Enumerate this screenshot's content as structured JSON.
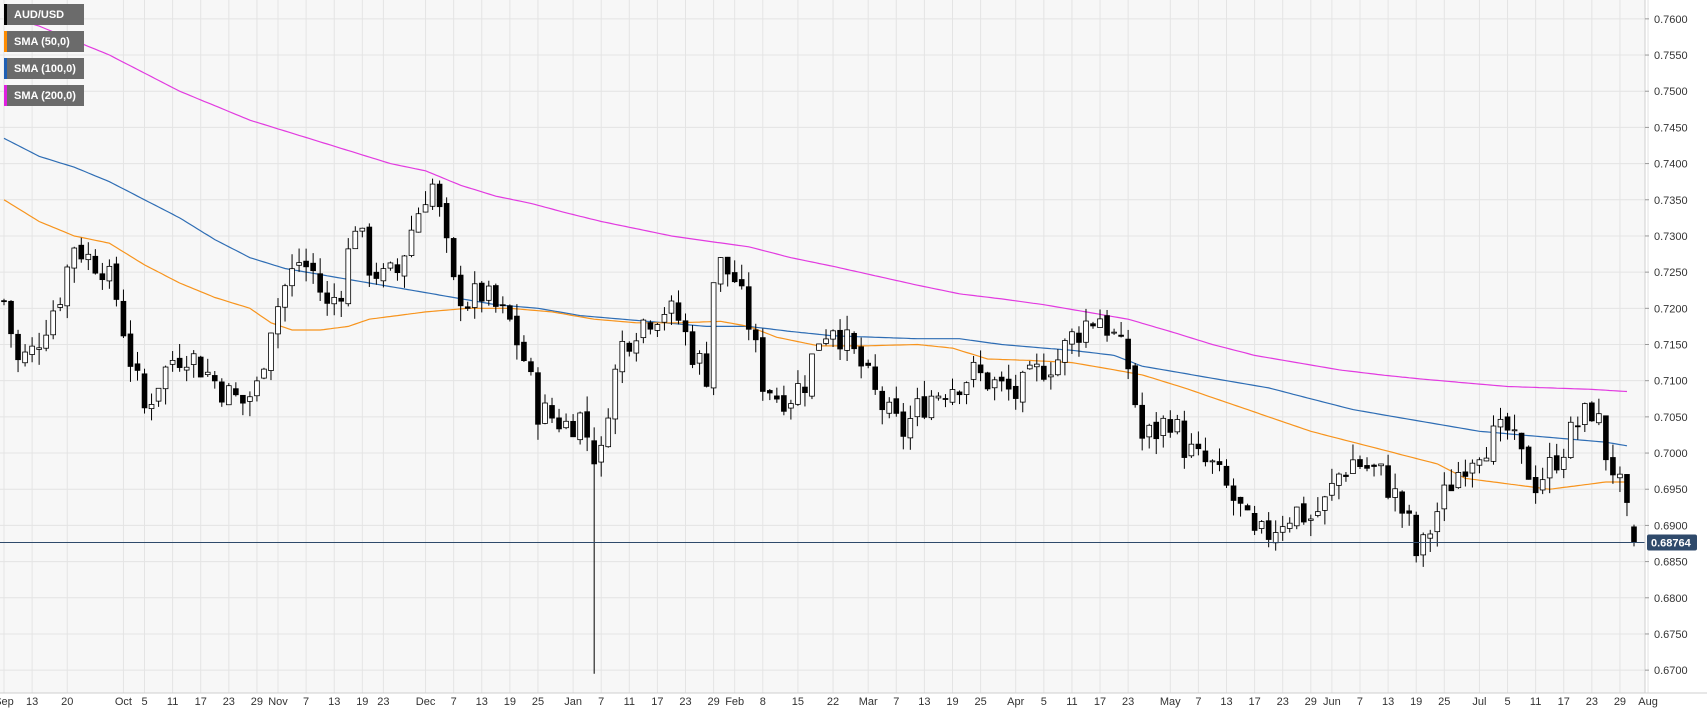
{
  "chart_data": {
    "type": "candlestick",
    "symbol": "AUD/USD",
    "timeframe": "daily",
    "last_price": "0.68764",
    "last_value": 0.68764,
    "ylim": [
      0.6685,
      0.7615
    ],
    "y_ticks": [
      "0.6700",
      "0.6750",
      "0.6800",
      "0.6850",
      "0.6900",
      "0.6950",
      "0.7000",
      "0.7050",
      "0.7100",
      "0.7150",
      "0.7200",
      "0.7250",
      "0.7300",
      "0.7350",
      "0.7400",
      "0.7450",
      "0.7500",
      "0.7550",
      "0.7600"
    ],
    "x_labels": [
      {
        "label": "Sep",
        "i": 0
      },
      {
        "label": "13",
        "i": 4
      },
      {
        "label": "20",
        "i": 9
      },
      {
        "label": "Oct",
        "i": 17
      },
      {
        "label": "5",
        "i": 20
      },
      {
        "label": "11",
        "i": 24
      },
      {
        "label": "17",
        "i": 28
      },
      {
        "label": "23",
        "i": 32
      },
      {
        "label": "29",
        "i": 36
      },
      {
        "label": "Nov",
        "i": 39
      },
      {
        "label": "7",
        "i": 43
      },
      {
        "label": "13",
        "i": 47
      },
      {
        "label": "19",
        "i": 51
      },
      {
        "label": "23",
        "i": 54
      },
      {
        "label": "Dec",
        "i": 60
      },
      {
        "label": "7",
        "i": 64
      },
      {
        "label": "13",
        "i": 68
      },
      {
        "label": "19",
        "i": 72
      },
      {
        "label": "25",
        "i": 76
      },
      {
        "label": "Jan",
        "i": 81
      },
      {
        "label": "7",
        "i": 85
      },
      {
        "label": "11",
        "i": 89
      },
      {
        "label": "17",
        "i": 93
      },
      {
        "label": "23",
        "i": 97
      },
      {
        "label": "29",
        "i": 101
      },
      {
        "label": "Feb",
        "i": 104
      },
      {
        "label": "8",
        "i": 108
      },
      {
        "label": "15",
        "i": 113
      },
      {
        "label": "22",
        "i": 118
      },
      {
        "label": "Mar",
        "i": 123
      },
      {
        "label": "7",
        "i": 127
      },
      {
        "label": "13",
        "i": 131
      },
      {
        "label": "19",
        "i": 135
      },
      {
        "label": "25",
        "i": 139
      },
      {
        "label": "Apr",
        "i": 144
      },
      {
        "label": "5",
        "i": 148
      },
      {
        "label": "11",
        "i": 152
      },
      {
        "label": "17",
        "i": 156
      },
      {
        "label": "23",
        "i": 160
      },
      {
        "label": "May",
        "i": 166
      },
      {
        "label": "7",
        "i": 170
      },
      {
        "label": "13",
        "i": 174
      },
      {
        "label": "17",
        "i": 178
      },
      {
        "label": "23",
        "i": 182
      },
      {
        "label": "29",
        "i": 186
      },
      {
        "label": "Jun",
        "i": 189
      },
      {
        "label": "7",
        "i": 193
      },
      {
        "label": "13",
        "i": 197
      },
      {
        "label": "19",
        "i": 201
      },
      {
        "label": "25",
        "i": 205
      },
      {
        "label": "Jul",
        "i": 210
      },
      {
        "label": "5",
        "i": 214
      },
      {
        "label": "11",
        "i": 218
      },
      {
        "label": "17",
        "i": 222
      },
      {
        "label": "23",
        "i": 226
      },
      {
        "label": "29",
        "i": 230
      },
      {
        "label": "Aug",
        "i": 234
      }
    ],
    "legend": [
      {
        "label": "AUD/USD",
        "color": "#000000"
      },
      {
        "label": "SMA (50,0)",
        "color": "#ff8c00"
      },
      {
        "label": "SMA (100,0)",
        "color": "#1f5fb4"
      },
      {
        "label": "SMA (200,0)",
        "color": "#e020e0"
      }
    ],
    "colors": {
      "up": "#ffffff",
      "down": "#000000",
      "sma50": "#f7941d",
      "sma100": "#2e6db4",
      "sma200": "#e23be0",
      "last_line": "#2f4a6b",
      "bg": "#f7f7f7",
      "grid": "#e4e4e4"
    },
    "grid": true,
    "sma50": [
      [
        0,
        0.735
      ],
      [
        5,
        0.732
      ],
      [
        10,
        0.73
      ],
      [
        15,
        0.729
      ],
      [
        20,
        0.726
      ],
      [
        25,
        0.7235
      ],
      [
        30,
        0.7215
      ],
      [
        35,
        0.72
      ],
      [
        38,
        0.718
      ],
      [
        41,
        0.717
      ],
      [
        45,
        0.717
      ],
      [
        49,
        0.7175
      ],
      [
        52,
        0.7185
      ],
      [
        56,
        0.719
      ],
      [
        60,
        0.7195
      ],
      [
        66,
        0.72
      ],
      [
        72,
        0.72
      ],
      [
        78,
        0.7195
      ],
      [
        84,
        0.7185
      ],
      [
        90,
        0.718
      ],
      [
        96,
        0.718
      ],
      [
        102,
        0.7182
      ],
      [
        106,
        0.7175
      ],
      [
        110,
        0.716
      ],
      [
        116,
        0.7148
      ],
      [
        122,
        0.7148
      ],
      [
        130,
        0.715
      ],
      [
        135,
        0.7145
      ],
      [
        140,
        0.713
      ],
      [
        146,
        0.7128
      ],
      [
        152,
        0.7125
      ],
      [
        158,
        0.7115
      ],
      [
        162,
        0.7108
      ],
      [
        168,
        0.709
      ],
      [
        174,
        0.707
      ],
      [
        180,
        0.705
      ],
      [
        186,
        0.703
      ],
      [
        192,
        0.7015
      ],
      [
        198,
        0.7
      ],
      [
        204,
        0.6985
      ],
      [
        208,
        0.6965
      ],
      [
        212,
        0.696
      ],
      [
        216,
        0.6955
      ],
      [
        220,
        0.695
      ],
      [
        224,
        0.6955
      ],
      [
        228,
        0.696
      ],
      [
        231,
        0.696
      ]
    ],
    "sma100": [
      [
        0,
        0.7435
      ],
      [
        5,
        0.741
      ],
      [
        10,
        0.7395
      ],
      [
        15,
        0.7375
      ],
      [
        20,
        0.735
      ],
      [
        25,
        0.7325
      ],
      [
        30,
        0.7295
      ],
      [
        35,
        0.727
      ],
      [
        40,
        0.7255
      ],
      [
        46,
        0.7245
      ],
      [
        52,
        0.7235
      ],
      [
        58,
        0.7225
      ],
      [
        64,
        0.7215
      ],
      [
        70,
        0.7205
      ],
      [
        76,
        0.72
      ],
      [
        82,
        0.719
      ],
      [
        88,
        0.7185
      ],
      [
        94,
        0.718
      ],
      [
        100,
        0.7175
      ],
      [
        106,
        0.7175
      ],
      [
        112,
        0.7168
      ],
      [
        118,
        0.7162
      ],
      [
        124,
        0.716
      ],
      [
        130,
        0.7158
      ],
      [
        136,
        0.7158
      ],
      [
        142,
        0.715
      ],
      [
        148,
        0.7145
      ],
      [
        152,
        0.7142
      ],
      [
        158,
        0.7135
      ],
      [
        162,
        0.712
      ],
      [
        168,
        0.711
      ],
      [
        174,
        0.71
      ],
      [
        180,
        0.709
      ],
      [
        186,
        0.7075
      ],
      [
        192,
        0.706
      ],
      [
        198,
        0.705
      ],
      [
        204,
        0.704
      ],
      [
        210,
        0.703
      ],
      [
        216,
        0.7025
      ],
      [
        222,
        0.702
      ],
      [
        228,
        0.7015
      ],
      [
        231,
        0.701
      ]
    ],
    "sma200": [
      [
        0,
        0.7605
      ],
      [
        5,
        0.759
      ],
      [
        10,
        0.757
      ],
      [
        15,
        0.755
      ],
      [
        20,
        0.7525
      ],
      [
        25,
        0.75
      ],
      [
        30,
        0.748
      ],
      [
        35,
        0.746
      ],
      [
        40,
        0.7445
      ],
      [
        45,
        0.743
      ],
      [
        50,
        0.7415
      ],
      [
        55,
        0.74
      ],
      [
        60,
        0.739
      ],
      [
        65,
        0.737
      ],
      [
        70,
        0.7355
      ],
      [
        75,
        0.7345
      ],
      [
        80,
        0.7332
      ],
      [
        85,
        0.732
      ],
      [
        90,
        0.731
      ],
      [
        95,
        0.73
      ],
      [
        100,
        0.7293
      ],
      [
        106,
        0.7285
      ],
      [
        112,
        0.727
      ],
      [
        118,
        0.7258
      ],
      [
        124,
        0.7245
      ],
      [
        130,
        0.7232
      ],
      [
        136,
        0.722
      ],
      [
        142,
        0.7213
      ],
      [
        148,
        0.7205
      ],
      [
        154,
        0.7195
      ],
      [
        160,
        0.7185
      ],
      [
        166,
        0.7168
      ],
      [
        172,
        0.715
      ],
      [
        178,
        0.7135
      ],
      [
        184,
        0.7125
      ],
      [
        190,
        0.7115
      ],
      [
        196,
        0.7108
      ],
      [
        202,
        0.7102
      ],
      [
        208,
        0.7097
      ],
      [
        214,
        0.7092
      ],
      [
        220,
        0.709
      ],
      [
        226,
        0.7088
      ],
      [
        231,
        0.7085
      ]
    ],
    "anchors": [
      [
        0,
        0.721
      ],
      [
        2,
        0.7125
      ],
      [
        4,
        0.714
      ],
      [
        6,
        0.718
      ],
      [
        8,
        0.722
      ],
      [
        10,
        0.729
      ],
      [
        12,
        0.727
      ],
      [
        14,
        0.726
      ],
      [
        16,
        0.7215
      ],
      [
        18,
        0.713
      ],
      [
        20,
        0.706
      ],
      [
        22,
        0.71
      ],
      [
        24,
        0.713
      ],
      [
        26,
        0.714
      ],
      [
        28,
        0.712
      ],
      [
        30,
        0.71
      ],
      [
        32,
        0.708
      ],
      [
        34,
        0.707
      ],
      [
        36,
        0.709
      ],
      [
        38,
        0.718
      ],
      [
        40,
        0.723
      ],
      [
        42,
        0.7265
      ],
      [
        44,
        0.725
      ],
      [
        46,
        0.72
      ],
      [
        48,
        0.723
      ],
      [
        50,
        0.732
      ],
      [
        52,
        0.726
      ],
      [
        54,
        0.724
      ],
      [
        56,
        0.725
      ],
      [
        58,
        0.731
      ],
      [
        60,
        0.736
      ],
      [
        61,
        0.737
      ],
      [
        62,
        0.733
      ],
      [
        63,
        0.728
      ],
      [
        64,
        0.723
      ],
      [
        66,
        0.721
      ],
      [
        68,
        0.722
      ],
      [
        70,
        0.72
      ],
      [
        72,
        0.718
      ],
      [
        74,
        0.713
      ],
      [
        76,
        0.706
      ],
      [
        78,
        0.705
      ],
      [
        80,
        0.704
      ],
      [
        82,
        0.705
      ],
      [
        84,
        0.7
      ],
      [
        85,
        0.6995
      ],
      [
        86,
        0.707
      ],
      [
        88,
        0.715
      ],
      [
        90,
        0.7175
      ],
      [
        92,
        0.719
      ],
      [
        94,
        0.72
      ],
      [
        96,
        0.7185
      ],
      [
        98,
        0.714
      ],
      [
        100,
        0.711
      ],
      [
        101,
        0.724
      ],
      [
        102,
        0.726
      ],
      [
        104,
        0.724
      ],
      [
        106,
        0.718
      ],
      [
        108,
        0.71
      ],
      [
        110,
        0.708
      ],
      [
        112,
        0.708
      ],
      [
        114,
        0.71
      ],
      [
        116,
        0.716
      ],
      [
        118,
        0.718
      ],
      [
        120,
        0.715
      ],
      [
        122,
        0.712
      ],
      [
        124,
        0.708
      ],
      [
        126,
        0.705
      ],
      [
        128,
        0.703
      ],
      [
        130,
        0.706
      ],
      [
        132,
        0.708
      ],
      [
        134,
        0.709
      ],
      [
        136,
        0.71
      ],
      [
        138,
        0.711
      ],
      [
        140,
        0.71
      ],
      [
        142,
        0.709
      ],
      [
        144,
        0.708
      ],
      [
        146,
        0.71
      ],
      [
        148,
        0.712
      ],
      [
        150,
        0.713
      ],
      [
        152,
        0.716
      ],
      [
        154,
        0.718
      ],
      [
        156,
        0.719
      ],
      [
        158,
        0.716
      ],
      [
        160,
        0.712
      ],
      [
        162,
        0.702
      ],
      [
        164,
        0.703
      ],
      [
        166,
        0.705
      ],
      [
        168,
        0.701
      ],
      [
        170,
        0.699
      ],
      [
        172,
        0.698
      ],
      [
        174,
        0.695
      ],
      [
        176,
        0.692
      ],
      [
        178,
        0.688
      ],
      [
        180,
        0.689
      ],
      [
        182,
        0.691
      ],
      [
        184,
        0.692
      ],
      [
        186,
        0.691
      ],
      [
        188,
        0.693
      ],
      [
        190,
        0.697
      ],
      [
        192,
        0.699
      ],
      [
        194,
        0.698
      ],
      [
        196,
        0.697
      ],
      [
        198,
        0.694
      ],
      [
        200,
        0.69
      ],
      [
        201,
        0.686
      ],
      [
        202,
        0.687
      ],
      [
        204,
        0.692
      ],
      [
        206,
        0.696
      ],
      [
        208,
        0.699
      ],
      [
        210,
        0.701
      ],
      [
        212,
        0.702
      ],
      [
        214,
        0.703
      ],
      [
        216,
        0.699
      ],
      [
        218,
        0.696
      ],
      [
        220,
        0.698
      ],
      [
        222,
        0.701
      ],
      [
        224,
        0.704
      ],
      [
        226,
        0.706
      ],
      [
        227,
        0.704
      ],
      [
        228,
        0.7
      ],
      [
        229,
        0.698
      ],
      [
        230,
        0.695
      ],
      [
        231,
        0.691
      ],
      [
        232,
        0.6876
      ]
    ],
    "spike": {
      "i": 84,
      "low": 0.6695
    }
  }
}
